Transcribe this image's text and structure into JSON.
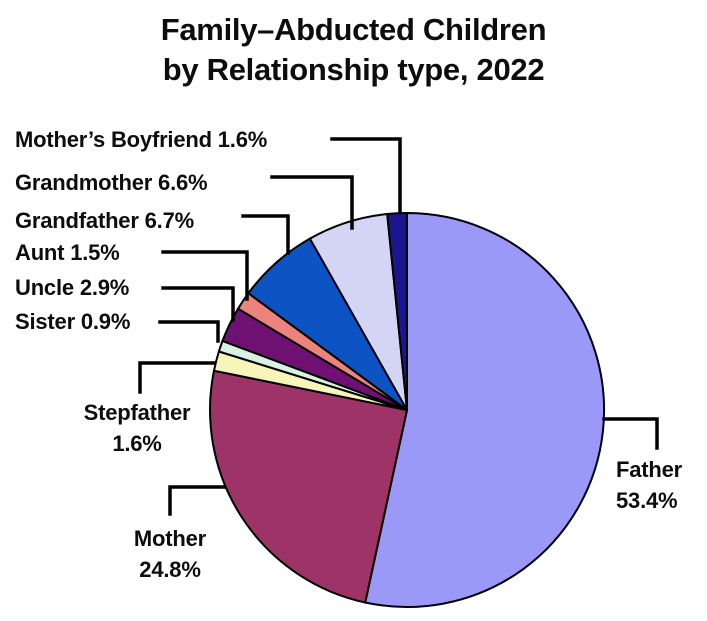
{
  "title": {
    "line1": "Family–Abducted Children",
    "line2": "by Relationship type, 2022"
  },
  "colors": {
    "background": "#ffffff",
    "outline": "#000000",
    "text": "#0d0d0d"
  },
  "chart_data": {
    "type": "pie",
    "title": "Family–Abducted Children by Relationship type, 2022",
    "unit": "%",
    "start_angle_deg": 0,
    "direction": "clockwise",
    "legend_position": "outside-callout-labels",
    "slices": [
      {
        "label": "Father",
        "value": 53.4,
        "color": "#9a99f7",
        "label_style": "stacked"
      },
      {
        "label": "Mother",
        "value": 24.8,
        "color": "#9e3367",
        "label_style": "stacked"
      },
      {
        "label": "Stepfather",
        "value": 1.6,
        "color": "#f6f6ba",
        "label_style": "stacked"
      },
      {
        "label": "Sister",
        "value": 0.9,
        "color": "#d8f1e2",
        "label_style": "inline"
      },
      {
        "label": "Uncle",
        "value": 2.9,
        "color": "#6f1173",
        "label_style": "inline"
      },
      {
        "label": "Aunt",
        "value": 1.5,
        "color": "#ec837c",
        "label_style": "inline"
      },
      {
        "label": "Grandfather",
        "value": 6.7,
        "color": "#0d53c4",
        "label_style": "inline"
      },
      {
        "label": "Grandmother",
        "value": 6.6,
        "color": "#d4d4f4",
        "label_style": "inline"
      },
      {
        "label": "Mother’s Boyfriend",
        "value": 1.6,
        "color": "#1b1690",
        "label_style": "inline"
      }
    ]
  }
}
